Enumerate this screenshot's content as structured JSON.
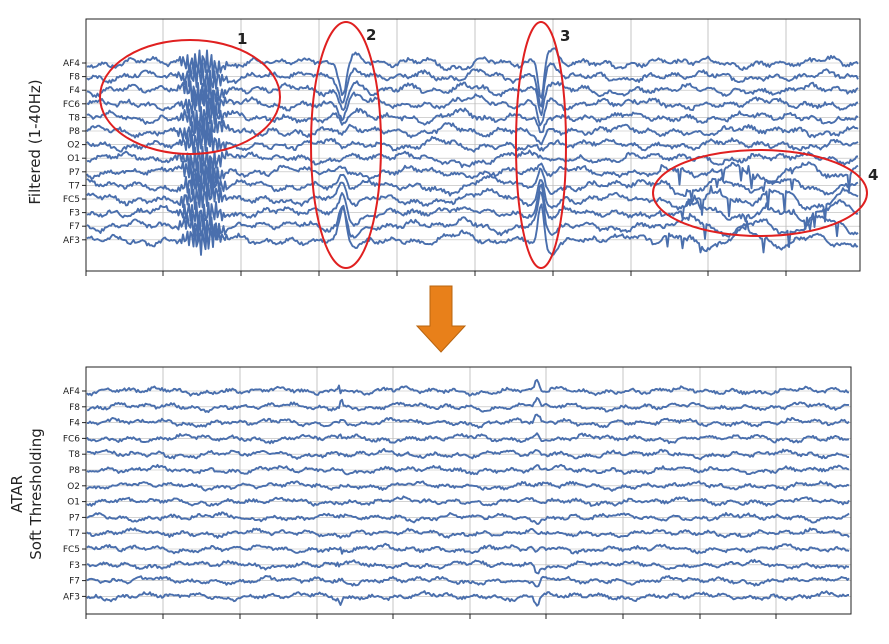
{
  "colors": {
    "trace": "#4a6fad",
    "grid": "#b8b8b8",
    "frame": "#222222",
    "annotation": "#e02020",
    "arrow": "#e8801a",
    "arrow_edge": "#b8640f"
  },
  "arrow_icon": "down-arrow-icon",
  "chart_data": [
    {
      "type": "line",
      "title": "",
      "ylabel": "Filtered (1-40Hz)",
      "xlabel": "",
      "grid": true,
      "channels": [
        "AF4",
        "F8",
        "F4",
        "FC6",
        "T8",
        "P8",
        "O2",
        "O1",
        "P7",
        "T7",
        "FC5",
        "F3",
        "F7",
        "AF3"
      ],
      "annotations": [
        {
          "label": "1",
          "description": "high-frequency burst"
        },
        {
          "label": "2",
          "description": "large transient across all channels"
        },
        {
          "label": "3",
          "description": "large transient across all channels"
        },
        {
          "label": "4",
          "description": "spiky artifact on lower channels"
        }
      ]
    },
    {
      "type": "line",
      "title": "",
      "ylabel_lines": [
        "ATAR",
        "Soft Thresholding"
      ],
      "xlabel": "",
      "grid": true,
      "channels": [
        "AF4",
        "F8",
        "F4",
        "FC6",
        "T8",
        "P8",
        "O2",
        "O1",
        "P7",
        "T7",
        "FC5",
        "F3",
        "F7",
        "AF3"
      ]
    }
  ]
}
